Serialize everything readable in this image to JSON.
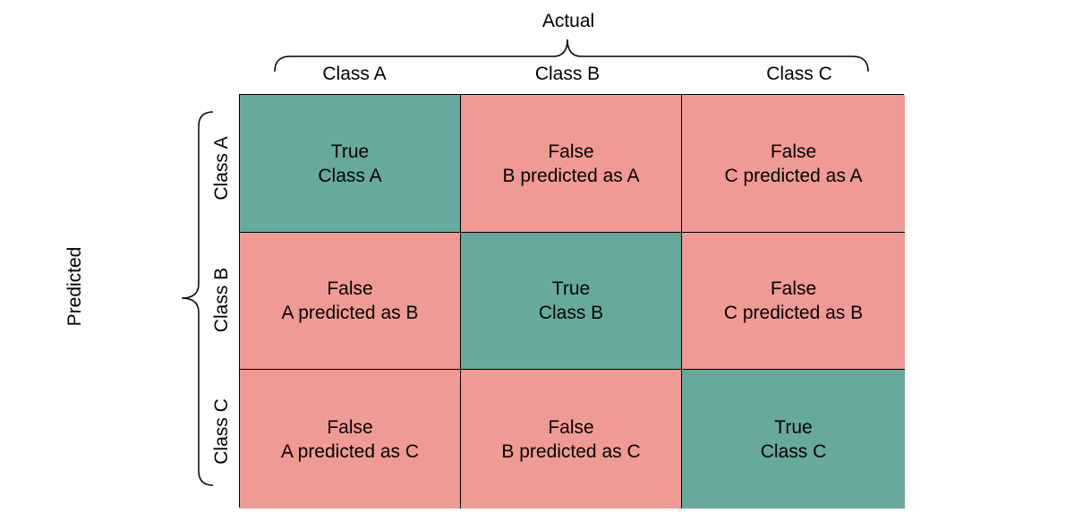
{
  "colors": {
    "correct": "#67aa9d",
    "incorrect": "#f09a95"
  },
  "axes": {
    "actual_title": "Actual",
    "predicted_title": "Predicted",
    "columns": [
      "Class A",
      "Class B",
      "Class C"
    ],
    "rows": [
      "Class A",
      "Class B",
      "Class C"
    ]
  },
  "matrix": [
    [
      {
        "title": "True",
        "detail": "Class A",
        "kind": "correct"
      },
      {
        "title": "False",
        "detail": "B predicted as A",
        "kind": "incorrect"
      },
      {
        "title": "False",
        "detail": "C predicted as A",
        "kind": "incorrect"
      }
    ],
    [
      {
        "title": "False",
        "detail": "A predicted as B",
        "kind": "incorrect"
      },
      {
        "title": "True",
        "detail": "Class B",
        "kind": "correct"
      },
      {
        "title": "False",
        "detail": "C predicted as B",
        "kind": "incorrect"
      }
    ],
    [
      {
        "title": "False",
        "detail": "A predicted as C",
        "kind": "incorrect"
      },
      {
        "title": "False",
        "detail": "B predicted as C",
        "kind": "incorrect"
      },
      {
        "title": "True",
        "detail": "Class C",
        "kind": "correct"
      }
    ]
  ]
}
